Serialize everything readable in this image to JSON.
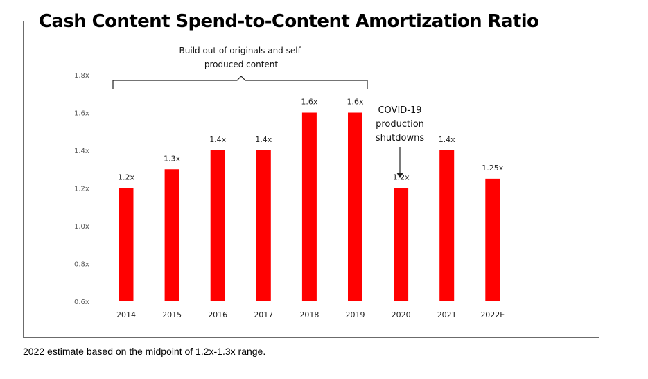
{
  "chart_data": {
    "type": "bar",
    "title": "Cash Content Spend-to-Content Amortization Ratio",
    "categories": [
      "2014",
      "2015",
      "2016",
      "2017",
      "2018",
      "2019",
      "2020",
      "2021",
      "2022E"
    ],
    "values": [
      1.2,
      1.3,
      1.4,
      1.4,
      1.6,
      1.6,
      1.2,
      1.4,
      1.25
    ],
    "data_labels": [
      "1.2x",
      "1.3x",
      "1.4x",
      "1.4x",
      "1.6x",
      "1.6x",
      "1.2x",
      "1.4x",
      "1.25x"
    ],
    "y_ticks": [
      "0.6x",
      "0.8x",
      "1.0x",
      "1.2x",
      "1.4x",
      "1.6x",
      "1.8x"
    ],
    "y_tick_values": [
      0.6,
      0.8,
      1.0,
      1.2,
      1.4,
      1.6,
      1.8
    ],
    "ylim": [
      0.6,
      1.8
    ],
    "bar_color": "#ff0000",
    "grid": false,
    "legend": "none",
    "annotations": {
      "bracket_text_line1": "Build out of originals and self-",
      "bracket_text_line2": "produced content",
      "covid_line1": "COVID-19",
      "covid_line2": "production",
      "covid_line3": "shutdowns"
    }
  },
  "footnote": "2022 estimate based on the midpoint of 1.2x-1.3x range."
}
